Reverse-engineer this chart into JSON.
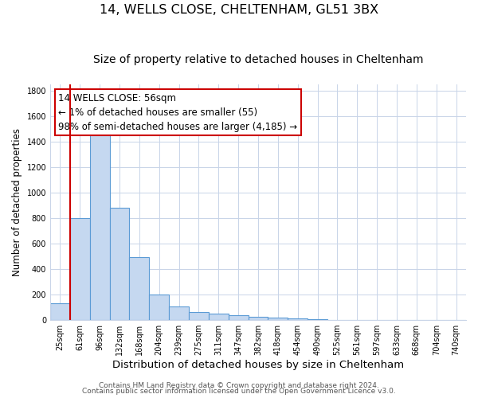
{
  "title": "14, WELLS CLOSE, CHELTENHAM, GL51 3BX",
  "subtitle": "Size of property relative to detached houses in Cheltenham",
  "xlabel": "Distribution of detached houses by size in Cheltenham",
  "ylabel": "Number of detached properties",
  "categories": [
    "25sqm",
    "61sqm",
    "96sqm",
    "132sqm",
    "168sqm",
    "204sqm",
    "239sqm",
    "275sqm",
    "311sqm",
    "347sqm",
    "382sqm",
    "418sqm",
    "454sqm",
    "490sqm",
    "525sqm",
    "561sqm",
    "597sqm",
    "633sqm",
    "668sqm",
    "704sqm",
    "740sqm"
  ],
  "values": [
    130,
    800,
    1480,
    880,
    495,
    200,
    105,
    65,
    50,
    35,
    25,
    20,
    15,
    5,
    3,
    1,
    1,
    1,
    0,
    0,
    0
  ],
  "bar_color": "#c5d8f0",
  "bar_edge_color": "#5b9bd5",
  "bar_edge_width": 0.8,
  "redline_x": 0.5,
  "redline_color": "#cc0000",
  "annotation_box_text": "14 WELLS CLOSE: 56sqm\n← 1% of detached houses are smaller (55)\n98% of semi-detached houses are larger (4,185) →",
  "ylim": [
    0,
    1850
  ],
  "yticks": [
    0,
    200,
    400,
    600,
    800,
    1000,
    1200,
    1400,
    1600,
    1800
  ],
  "background_color": "#ffffff",
  "grid_color": "#c8d4e8",
  "footer_line1": "Contains HM Land Registry data © Crown copyright and database right 2024.",
  "footer_line2": "Contains public sector information licensed under the Open Government Licence v3.0.",
  "title_fontsize": 11.5,
  "subtitle_fontsize": 10,
  "xlabel_fontsize": 9.5,
  "ylabel_fontsize": 8.5,
  "tick_fontsize": 7,
  "annotation_fontsize": 8.5,
  "footer_fontsize": 6.5
}
